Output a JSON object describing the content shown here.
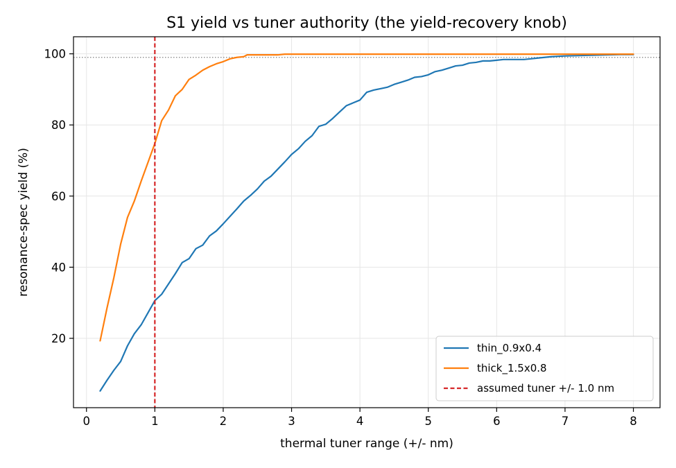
{
  "chart_data": {
    "type": "line",
    "title": "S1 yield vs tuner authority (the yield-recovery knob)",
    "xlabel": "thermal tuner range (+/- nm)",
    "ylabel": "resonance-spec yield (%)",
    "xlim": [
      -0.19,
      8.39
    ],
    "ylim": [
      0.5,
      104.8
    ],
    "xticks": [
      0,
      1,
      2,
      3,
      4,
      5,
      6,
      7,
      8
    ],
    "yticks": [
      20,
      40,
      60,
      80,
      100
    ],
    "grid": true,
    "legend_position": "bottom-right",
    "colors": {
      "thin": "#1f77b4",
      "thick": "#ff7f0e",
      "tuner": "#d62728",
      "reference": "#808080"
    },
    "reference_line": {
      "y": 99
    },
    "series": [
      {
        "name": "thin_0.9x0.4",
        "color": "#1f77b4",
        "x": [
          0.2,
          0.3,
          0.4,
          0.5,
          0.6,
          0.7,
          0.8,
          0.9,
          1.0,
          1.1,
          1.2,
          1.3,
          1.4,
          1.5,
          1.6,
          1.7,
          1.8,
          1.9,
          2.0,
          2.1,
          2.2,
          2.3,
          2.4,
          2.5,
          2.6,
          2.7,
          2.8,
          2.9,
          3.0,
          3.1,
          3.2,
          3.3,
          3.4,
          3.5,
          3.6,
          3.7,
          3.8,
          3.9,
          4.0,
          4.1,
          4.2,
          4.3,
          4.4,
          4.5,
          4.6,
          4.7,
          4.8,
          4.9,
          5.0,
          5.1,
          5.2,
          5.3,
          5.4,
          5.5,
          5.6,
          5.7,
          5.8,
          5.9,
          6.0,
          6.1,
          6.2,
          6.3,
          6.4,
          6.5,
          6.6,
          6.7,
          6.8,
          6.9,
          7.0,
          7.2,
          7.4,
          7.6,
          7.8,
          8.0
        ],
        "y": [
          5.2,
          8.2,
          11.0,
          13.5,
          17.9,
          21.3,
          23.8,
          27.2,
          30.6,
          32.4,
          35.3,
          38.2,
          41.3,
          42.4,
          45.2,
          46.2,
          48.8,
          50.2,
          52.2,
          54.3,
          56.4,
          58.6,
          60.2,
          62.0,
          64.2,
          65.6,
          67.6,
          69.6,
          71.7,
          73.3,
          75.4,
          77.0,
          79.6,
          80.2,
          81.8,
          83.6,
          85.4,
          86.2,
          87.0,
          89.2,
          89.8,
          90.2,
          90.6,
          91.4,
          92.0,
          92.6,
          93.4,
          93.6,
          94.1,
          95.0,
          95.4,
          96.0,
          96.6,
          96.8,
          97.4,
          97.6,
          98.0,
          98.0,
          98.2,
          98.4,
          98.4,
          98.4,
          98.4,
          98.6,
          98.8,
          99.0,
          99.2,
          99.3,
          99.4,
          99.5,
          99.6,
          99.7,
          99.8,
          99.8
        ]
      },
      {
        "name": "thick_1.5x0.8",
        "color": "#ff7f0e",
        "x": [
          0.2,
          0.3,
          0.4,
          0.5,
          0.6,
          0.7,
          0.8,
          0.9,
          1.0,
          1.1,
          1.2,
          1.3,
          1.4,
          1.5,
          1.6,
          1.7,
          1.8,
          1.9,
          2.0,
          2.1,
          2.2,
          2.3,
          2.35,
          2.5,
          2.8,
          2.9,
          3.0,
          3.5,
          4.0,
          5.0,
          6.0,
          7.0,
          8.0
        ],
        "y": [
          19.3,
          28.5,
          37.0,
          46.5,
          54.0,
          58.6,
          64.2,
          69.5,
          74.8,
          81.2,
          84.2,
          88.2,
          90.0,
          92.8,
          94.0,
          95.4,
          96.4,
          97.2,
          97.8,
          98.6,
          99.0,
          99.2,
          99.7,
          99.7,
          99.7,
          99.9,
          99.9,
          99.9,
          99.9,
          99.9,
          99.9,
          99.9,
          99.9
        ]
      }
    ],
    "vertical_line": {
      "x": 1.0,
      "label": "assumed tuner +/- 1.0 nm",
      "color": "#d62728"
    }
  }
}
